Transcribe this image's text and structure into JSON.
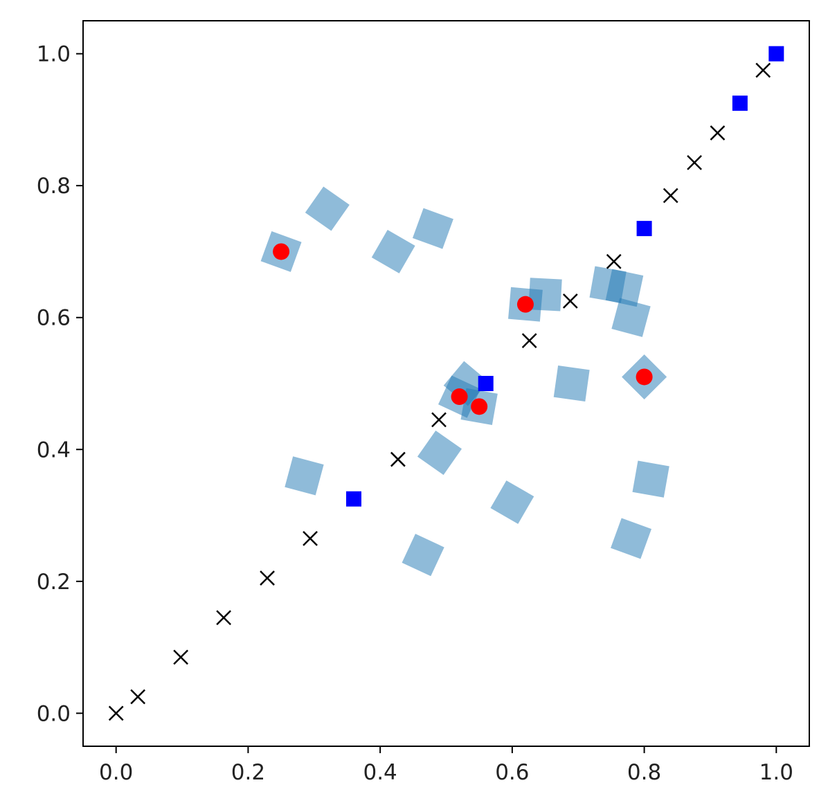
{
  "chart_data": {
    "type": "scatter",
    "title": "",
    "xlabel": "",
    "ylabel": "",
    "xlim": [
      -0.05,
      1.05
    ],
    "ylim": [
      -0.05,
      1.05
    ],
    "grid": false,
    "legend": "none",
    "x_ticks": [
      0.0,
      0.2,
      0.4,
      0.6,
      0.8,
      1.0
    ],
    "y_ticks": [
      0.0,
      0.2,
      0.4,
      0.6,
      0.8,
      1.0
    ],
    "x_tick_labels": [
      "0.0",
      "0.2",
      "0.4",
      "0.6",
      "0.8",
      "1.0"
    ],
    "y_tick_labels": [
      "0.0",
      "0.2",
      "0.4",
      "0.6",
      "0.8",
      "1.0"
    ],
    "series": [
      {
        "marker": "square",
        "style": "light-blue-rotated-squares",
        "color": "#1f77b4",
        "alpha": 0.5,
        "points": [
          {
            "x": 0.32,
            "y": 0.765,
            "rotation": 35
          },
          {
            "x": 0.48,
            "y": 0.735,
            "rotation": 20
          },
          {
            "x": 0.42,
            "y": 0.7,
            "rotation": 30
          },
          {
            "x": 0.25,
            "y": 0.7,
            "rotation": 20
          },
          {
            "x": 0.62,
            "y": 0.62,
            "rotation": 5
          },
          {
            "x": 0.65,
            "y": 0.635,
            "rotation": 3
          },
          {
            "x": 0.745,
            "y": 0.65,
            "rotation": 10
          },
          {
            "x": 0.77,
            "y": 0.645,
            "rotation": 12
          },
          {
            "x": 0.78,
            "y": 0.6,
            "rotation": 15
          },
          {
            "x": 0.53,
            "y": 0.5,
            "rotation": 40
          },
          {
            "x": 0.52,
            "y": 0.48,
            "rotation": 25
          },
          {
            "x": 0.55,
            "y": 0.465,
            "rotation": 10
          },
          {
            "x": 0.69,
            "y": 0.5,
            "rotation": 8
          },
          {
            "x": 0.8,
            "y": 0.51,
            "rotation": 45
          },
          {
            "x": 0.49,
            "y": 0.395,
            "rotation": 35
          },
          {
            "x": 0.285,
            "y": 0.36,
            "rotation": 15
          },
          {
            "x": 0.6,
            "y": 0.32,
            "rotation": 30
          },
          {
            "x": 0.81,
            "y": 0.355,
            "rotation": 10
          },
          {
            "x": 0.465,
            "y": 0.24,
            "rotation": 25
          },
          {
            "x": 0.78,
            "y": 0.265,
            "rotation": 20
          }
        ]
      },
      {
        "marker": "circle",
        "style": "red-dots",
        "color": "#ff0000",
        "points": [
          {
            "x": 0.25,
            "y": 0.7
          },
          {
            "x": 0.62,
            "y": 0.62
          },
          {
            "x": 0.52,
            "y": 0.48
          },
          {
            "x": 0.55,
            "y": 0.465
          },
          {
            "x": 0.8,
            "y": 0.51
          }
        ]
      },
      {
        "marker": "square",
        "style": "blue-squares",
        "color": "#0000ff",
        "points": [
          {
            "x": 0.36,
            "y": 0.325
          },
          {
            "x": 0.56,
            "y": 0.5
          },
          {
            "x": 0.8,
            "y": 0.735
          },
          {
            "x": 0.945,
            "y": 0.925
          },
          {
            "x": 1.0,
            "y": 1.0
          }
        ]
      },
      {
        "marker": "x",
        "style": "black-x",
        "color": "#000000",
        "points": [
          {
            "x": 0.0,
            "y": 0.0
          },
          {
            "x": 0.033,
            "y": 0.025
          },
          {
            "x": 0.098,
            "y": 0.085
          },
          {
            "x": 0.163,
            "y": 0.145
          },
          {
            "x": 0.229,
            "y": 0.205
          },
          {
            "x": 0.294,
            "y": 0.265
          },
          {
            "x": 0.427,
            "y": 0.385
          },
          {
            "x": 0.489,
            "y": 0.445
          },
          {
            "x": 0.626,
            "y": 0.565
          },
          {
            "x": 0.688,
            "y": 0.625
          },
          {
            "x": 0.754,
            "y": 0.685
          },
          {
            "x": 0.84,
            "y": 0.785
          },
          {
            "x": 0.876,
            "y": 0.835
          },
          {
            "x": 0.911,
            "y": 0.88
          },
          {
            "x": 0.98,
            "y": 0.975
          }
        ]
      }
    ]
  }
}
